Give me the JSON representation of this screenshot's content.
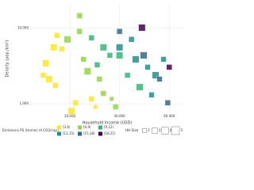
{
  "chart_data": {
    "type": "scatter",
    "x_label": "Household income (USD)",
    "y_label": "Density (pop./km²)",
    "legend_title": "Emissions PS (tonnes of CO2/cap)",
    "size_title": "HH Size",
    "size_legend": [
      2,
      3,
      4,
      5
    ],
    "xlim": [
      4000,
      66000
    ],
    "ylim": [
      750,
      21000
    ],
    "ylog": true,
    "grid": true,
    "xticks": [
      {
        "value": 20000,
        "label": "20,000"
      },
      {
        "value": 40000,
        "label": "40,000"
      },
      {
        "value": 60000,
        "label": "60,000"
      }
    ],
    "yticks": [
      {
        "value": 1000,
        "label": "1,000"
      },
      {
        "value": 10000,
        "label": "10,000"
      }
    ],
    "series": [
      {
        "name": "[3,6)",
        "color": "#fde725",
        "x": [
          14800,
          13500,
          16800,
          10300,
          9350,
          11600,
          14200,
          22300,
          20600,
          28700,
          30300
        ],
        "y": [
          8040,
          5590,
          5320,
          3440,
          2390,
          2120,
          1750,
          1030,
          800,
          1160,
          910
        ],
        "size": [
          3,
          4,
          3,
          4,
          3,
          4,
          3,
          3,
          4,
          3,
          2
        ]
      },
      {
        "name": "[6,9)",
        "color": "#90d743",
        "x": [
          23900,
          23900,
          19000,
          25500,
          27100,
          31900,
          33500,
          36800,
          38400
        ],
        "y": [
          14700,
          9080,
          7120,
          3880,
          2700,
          2120,
          1370,
          1160,
          910
        ],
        "size": [
          3,
          3,
          4,
          3,
          4,
          3,
          3,
          2,
          3
        ]
      },
      {
        "name": "[9,12)",
        "color": "#35b779",
        "x": [
          28700,
          33500,
          31000,
          40000,
          43200,
          48100,
          36100
        ],
        "y": [
          7470,
          5590,
          3280,
          4380,
          2390,
          1660,
          4380
        ],
        "size": [
          3,
          4,
          3,
          4,
          3,
          4,
          3
        ]
      },
      {
        "name": "[12,15)",
        "color": "#21918c",
        "x": [
          40000,
          46500,
          51300,
          54500,
          57700,
          44800,
          52900
        ],
        "y": [
          5590,
          3880,
          3050,
          2390,
          3880,
          7120,
          1310
        ],
        "size": [
          4,
          4,
          3,
          4,
          3,
          3,
          3
        ]
      },
      {
        "name": "[15,18)",
        "color": "#31688e",
        "x": [
          40000,
          49700,
          56100,
          59400
        ],
        "y": [
          9080,
          4380,
          2120,
          1030
        ],
        "size": [
          3,
          4,
          3,
          3
        ]
      },
      {
        "name": "[18,21)",
        "color": "#440154",
        "x": [
          49000,
          60000
        ],
        "y": [
          10200,
          3050
        ],
        "size": [
          4,
          3
        ]
      }
    ]
  }
}
